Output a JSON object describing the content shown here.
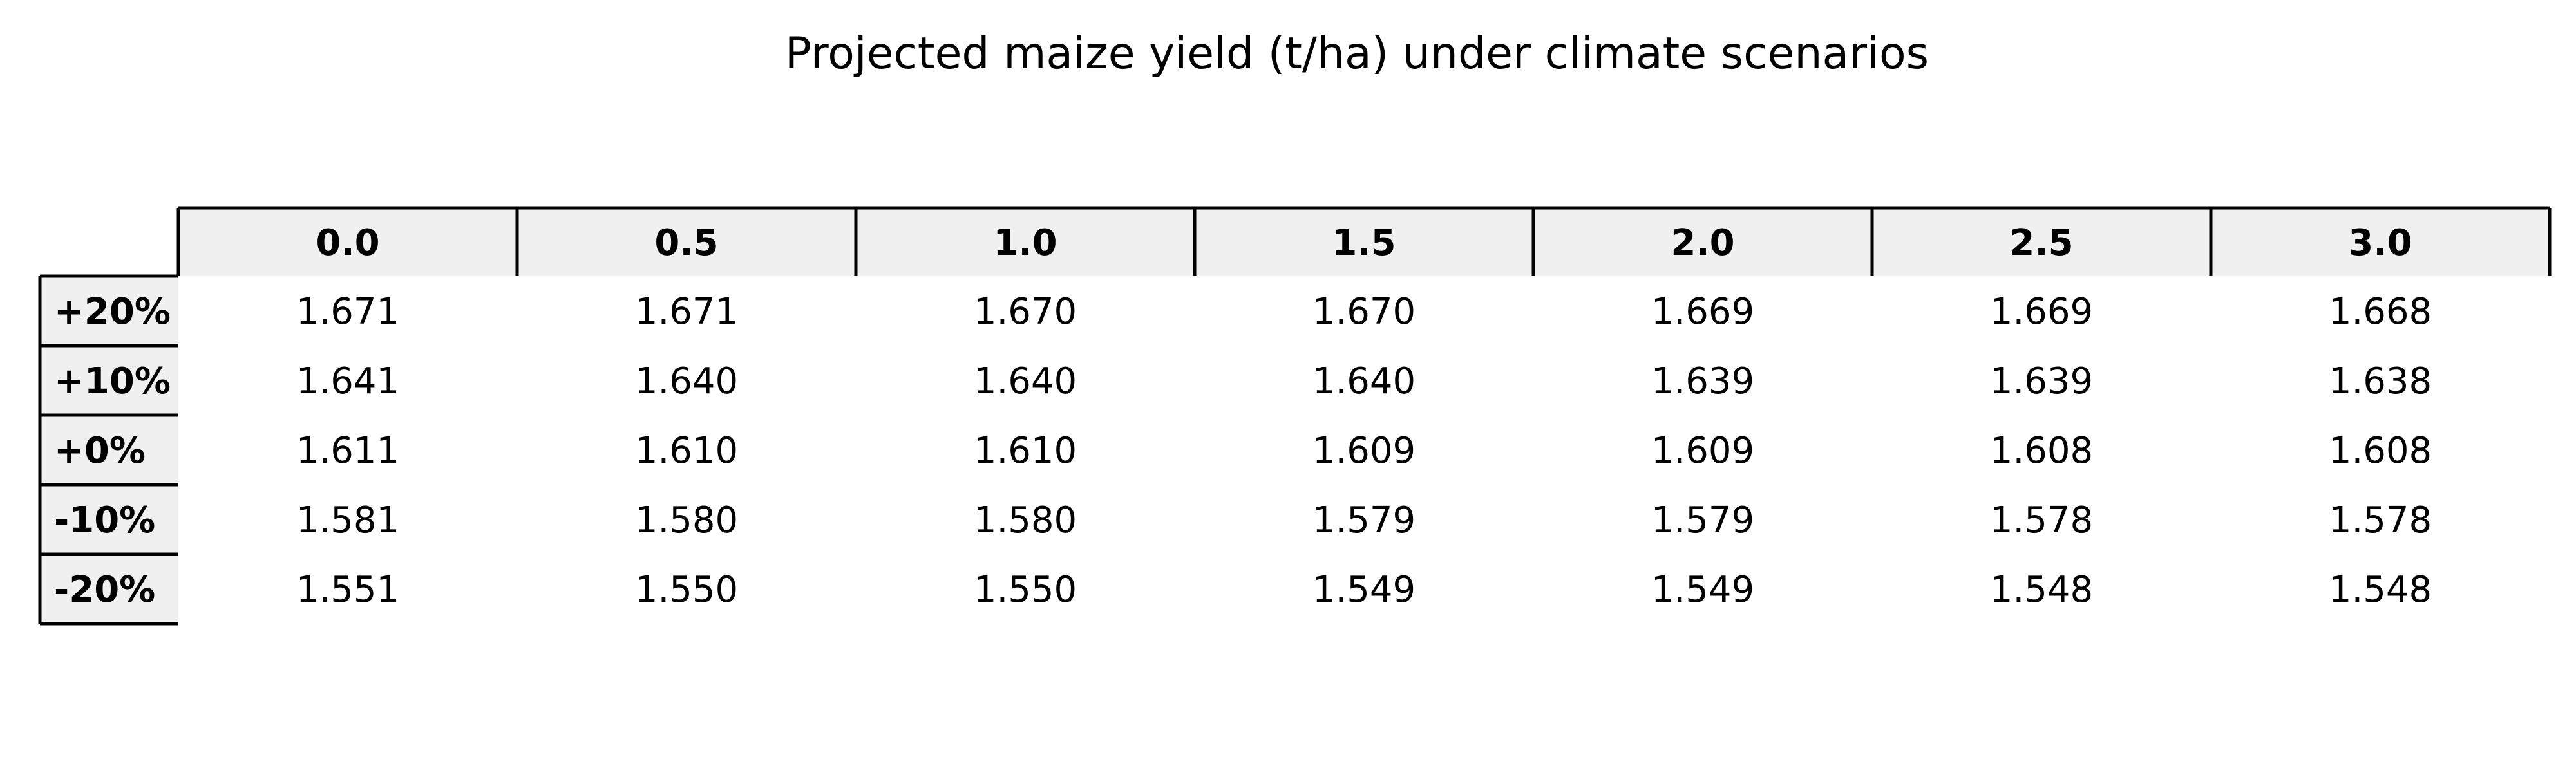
{
  "chart_data": {
    "type": "table",
    "title": "Projected maize yield (t/ha) under climate scenarios",
    "column_headers": [
      "0.0",
      "0.5",
      "1.0",
      "1.5",
      "2.0",
      "2.5",
      "3.0"
    ],
    "row_headers": [
      "+20%",
      "+10%",
      "+0%",
      "-10%",
      "-20%"
    ],
    "cells": [
      [
        "1.671",
        "1.671",
        "1.670",
        "1.670",
        "1.669",
        "1.669",
        "1.668"
      ],
      [
        "1.641",
        "1.640",
        "1.640",
        "1.640",
        "1.639",
        "1.639",
        "1.638"
      ],
      [
        "1.611",
        "1.610",
        "1.610",
        "1.609",
        "1.609",
        "1.608",
        "1.608"
      ],
      [
        "1.581",
        "1.580",
        "1.580",
        "1.579",
        "1.579",
        "1.578",
        "1.578"
      ],
      [
        "1.551",
        "1.550",
        "1.550",
        "1.549",
        "1.549",
        "1.548",
        "1.548"
      ]
    ],
    "colors": {
      "header_fill": "#f0f0f0",
      "border": "#000000",
      "text": "#000000"
    }
  }
}
